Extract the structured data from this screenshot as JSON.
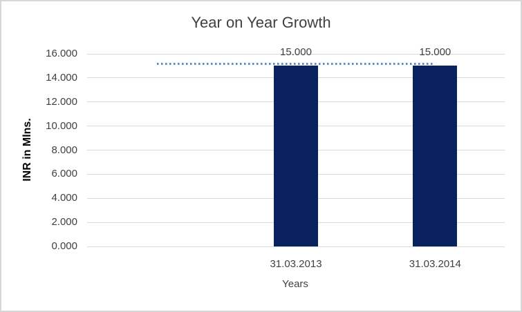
{
  "chart_data": {
    "type": "bar",
    "title": "Year on Year Growth",
    "xlabel": "Years",
    "ylabel": "INR in Mlns.",
    "categories": [
      "",
      "31.03.2013",
      "31.03.2014"
    ],
    "series": [
      {
        "name": "year-value-columns",
        "type": "column",
        "values": [
          null,
          15.0,
          15.0
        ],
        "data_labels": [
          "",
          "15.000",
          "15.000"
        ],
        "color": "#0A2260"
      },
      {
        "name": "target-dotted-line",
        "type": "line",
        "line_style": "dotted",
        "values": [
          15.0,
          15.0,
          15.0
        ],
        "color": "#5589CE"
      }
    ],
    "ylim": [
      0,
      16
    ],
    "ytick_step": 2,
    "ytick_labels": [
      "0.000",
      "2.000",
      "4.000",
      "6.000",
      "8.000",
      "10.000",
      "12.000",
      "14.000",
      "16.000"
    ],
    "grid": true,
    "legend": "none"
  },
  "colors": {
    "background": "#FFFFFF",
    "chart_border": "#D7D7D7",
    "gridline": "#D9D9D9",
    "text": "#404040",
    "axis_title_text": "#000000",
    "bar": "#0A2260",
    "dotted_line": "#5589CE"
  }
}
